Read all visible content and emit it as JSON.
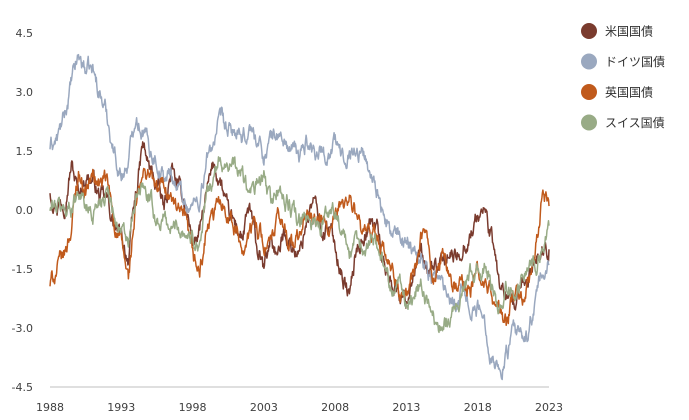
{
  "chart_data": {
    "type": "line",
    "title": "",
    "xlabel": "",
    "ylabel": "",
    "xlim": [
      1988,
      2023
    ],
    "ylim": [
      -4.5,
      4.5
    ],
    "x_ticks": [
      "1988",
      "1993",
      "1998",
      "2003",
      "2008",
      "2013",
      "2018",
      "2023"
    ],
    "y_ticks": [
      "4.5",
      "3.0",
      "1.5",
      "0.0",
      "-1.5",
      "-3.0",
      "-4.5"
    ],
    "grid": false,
    "legend_position": "right",
    "series": [
      {
        "name": "米国国債",
        "color": "#7a3b2e",
        "points": [
          [
            1988,
            0.5
          ],
          [
            1988.5,
            0.2
          ],
          [
            1989,
            0.3
          ],
          [
            1989.5,
            1.2
          ],
          [
            1990,
            0.4
          ],
          [
            1990.5,
            0.9
          ],
          [
            1991,
            0.8
          ],
          [
            1991.5,
            0.3
          ],
          [
            1992,
            0.2
          ],
          [
            1992.5,
            -0.4
          ],
          [
            1993,
            -0.8
          ],
          [
            1993.5,
            -1.2
          ],
          [
            1994,
            0.3
          ],
          [
            1994.5,
            1.6
          ],
          [
            1995,
            1.0
          ],
          [
            1995.5,
            0.6
          ],
          [
            1996,
            0.0
          ],
          [
            1996.5,
            1.0
          ],
          [
            1997,
            0.5
          ],
          [
            1997.5,
            0.2
          ],
          [
            1998,
            -0.8
          ],
          [
            1998.5,
            -0.6
          ],
          [
            1999,
            0.4
          ],
          [
            1999.5,
            1.1
          ],
          [
            2000,
            0.7
          ],
          [
            2000.5,
            -0.2
          ],
          [
            2001,
            -0.4
          ],
          [
            2001.5,
            -0.7
          ],
          [
            2002,
            0.0
          ],
          [
            2002.5,
            -1.0
          ],
          [
            2003,
            -1.6
          ],
          [
            2003.5,
            -0.7
          ],
          [
            2004,
            -1.2
          ],
          [
            2004.5,
            -0.5
          ],
          [
            2005,
            -0.9
          ],
          [
            2005.5,
            -1.2
          ],
          [
            2006,
            -0.2
          ],
          [
            2006.5,
            0.3
          ],
          [
            2007,
            -0.6
          ],
          [
            2007.5,
            -0.4
          ],
          [
            2008,
            -0.9
          ],
          [
            2008.5,
            -1.6
          ],
          [
            2009,
            -2.2
          ],
          [
            2009.5,
            -1.0
          ],
          [
            2010,
            -0.6
          ],
          [
            2010.5,
            -0.3
          ],
          [
            2011,
            -0.5
          ],
          [
            2011.5,
            -1.5
          ],
          [
            2012,
            -1.8
          ],
          [
            2012.5,
            -2.1
          ],
          [
            2013,
            -2.3
          ],
          [
            2013.5,
            -1.5
          ],
          [
            2014,
            -1.2
          ],
          [
            2014.5,
            -1.8
          ],
          [
            2015,
            -1.4
          ],
          [
            2015.5,
            -1.5
          ],
          [
            2016,
            -1.1
          ],
          [
            2016.5,
            -1.3
          ],
          [
            2017,
            -0.8
          ],
          [
            2017.5,
            -0.6
          ],
          [
            2018,
            -0.2
          ],
          [
            2018.5,
            0.0
          ],
          [
            2019,
            -0.8
          ],
          [
            2019.5,
            -1.8
          ],
          [
            2020,
            -2.3
          ],
          [
            2020.5,
            -2.6
          ],
          [
            2021,
            -2.2
          ],
          [
            2021.5,
            -1.8
          ],
          [
            2022,
            -1.3
          ],
          [
            2022.5,
            -1.0
          ],
          [
            2023,
            -1.0
          ]
        ]
      },
      {
        "name": "ドイツ国債",
        "color": "#9aa8bf",
        "points": [
          [
            1988,
            1.6
          ],
          [
            1988.5,
            1.8
          ],
          [
            1989,
            2.3
          ],
          [
            1989.5,
            3.2
          ],
          [
            1990,
            3.9
          ],
          [
            1990.5,
            3.6
          ],
          [
            1991,
            3.5
          ],
          [
            1991.5,
            3.0
          ],
          [
            1992,
            2.4
          ],
          [
            1992.5,
            1.5
          ],
          [
            1993,
            0.9
          ],
          [
            1993.5,
            1.2
          ],
          [
            1994,
            2.5
          ],
          [
            1994.5,
            2.1
          ],
          [
            1995,
            1.6
          ],
          [
            1995.5,
            1.3
          ],
          [
            1996,
            0.8
          ],
          [
            1996.5,
            0.9
          ],
          [
            1997,
            0.6
          ],
          [
            1997.5,
            0.2
          ],
          [
            1998,
            0.1
          ],
          [
            1998.5,
            0.3
          ],
          [
            1999,
            1.2
          ],
          [
            1999.5,
            1.8
          ],
          [
            2000,
            2.2
          ],
          [
            2000.5,
            1.9
          ],
          [
            2001,
            2.0
          ],
          [
            2001.5,
            1.6
          ],
          [
            2002,
            2.1
          ],
          [
            2002.5,
            1.8
          ],
          [
            2003,
            1.4
          ],
          [
            2003.5,
            1.8
          ],
          [
            2004,
            1.9
          ],
          [
            2004.5,
            1.7
          ],
          [
            2005,
            1.5
          ],
          [
            2005.5,
            1.3
          ],
          [
            2006,
            1.8
          ],
          [
            2006.5,
            1.5
          ],
          [
            2007,
            1.6
          ],
          [
            2007.5,
            1.4
          ],
          [
            2008,
            1.7
          ],
          [
            2008.5,
            1.3
          ],
          [
            2009,
            1.6
          ],
          [
            2009.5,
            1.5
          ],
          [
            2010,
            1.4
          ],
          [
            2010.5,
            0.9
          ],
          [
            2011,
            0.6
          ],
          [
            2011.5,
            -0.4
          ],
          [
            2012,
            -0.6
          ],
          [
            2012.5,
            -0.8
          ],
          [
            2013,
            -0.7
          ],
          [
            2013.5,
            -0.9
          ],
          [
            2014,
            -1.1
          ],
          [
            2014.5,
            -1.6
          ],
          [
            2015,
            -1.7
          ],
          [
            2015.5,
            -1.9
          ],
          [
            2016,
            -2.1
          ],
          [
            2016.5,
            -2.2
          ],
          [
            2017,
            -2.0
          ],
          [
            2017.5,
            -2.4
          ],
          [
            2018,
            -2.5
          ],
          [
            2018.5,
            -2.9
          ],
          [
            2019,
            -3.6
          ],
          [
            2019.5,
            -4.1
          ],
          [
            2020,
            -3.7
          ],
          [
            2020.5,
            -3.2
          ],
          [
            2021,
            -3.3
          ],
          [
            2021.5,
            -3.2
          ],
          [
            2022,
            -2.4
          ],
          [
            2022.5,
            -1.7
          ],
          [
            2023,
            -1.4
          ]
        ]
      },
      {
        "name": "英国国債",
        "color": "#c05a1c",
        "points": [
          [
            1988,
            -1.9
          ],
          [
            1988.5,
            -1.5
          ],
          [
            1989,
            -1.2
          ],
          [
            1989.5,
            -0.4
          ],
          [
            1990,
            1.0
          ],
          [
            1990.5,
            0.5
          ],
          [
            1991,
            0.9
          ],
          [
            1991.5,
            0.6
          ],
          [
            1992,
            0.7
          ],
          [
            1992.5,
            -0.3
          ],
          [
            1993,
            -0.9
          ],
          [
            1993.5,
            -1.8
          ],
          [
            1994,
            0.0
          ],
          [
            1994.5,
            0.8
          ],
          [
            1995,
            1.0
          ],
          [
            1995.5,
            0.4
          ],
          [
            1996,
            0.7
          ],
          [
            1996.5,
            0.3
          ],
          [
            1997,
            -0.1
          ],
          [
            1997.5,
            -0.4
          ],
          [
            1998,
            -1.3
          ],
          [
            1998.5,
            -1.6
          ],
          [
            1999,
            -0.5
          ],
          [
            1999.5,
            -0.2
          ],
          [
            2000,
            0.3
          ],
          [
            2000.5,
            0.0
          ],
          [
            2001,
            -0.5
          ],
          [
            2001.5,
            -0.9
          ],
          [
            2002,
            -0.6
          ],
          [
            2002.5,
            -0.3
          ],
          [
            2003,
            -0.8
          ],
          [
            2003.5,
            -0.9
          ],
          [
            2004,
            -0.3
          ],
          [
            2004.5,
            -0.5
          ],
          [
            2005,
            -0.9
          ],
          [
            2005.5,
            -0.7
          ],
          [
            2006,
            0.0
          ],
          [
            2006.5,
            -0.4
          ],
          [
            2007,
            -0.3
          ],
          [
            2007.5,
            -0.6
          ],
          [
            2008,
            -0.4
          ],
          [
            2008.5,
            0.2
          ],
          [
            2009,
            0.3
          ],
          [
            2009.5,
            -0.2
          ],
          [
            2010,
            -0.8
          ],
          [
            2010.5,
            -0.7
          ],
          [
            2011,
            -0.6
          ],
          [
            2011.5,
            -1.2
          ],
          [
            2012,
            -1.7
          ],
          [
            2012.5,
            -2.1
          ],
          [
            2013,
            -2.2
          ],
          [
            2013.5,
            -1.6
          ],
          [
            2014,
            -0.8
          ],
          [
            2014.5,
            -0.9
          ],
          [
            2015,
            -1.7
          ],
          [
            2015.5,
            -1.2
          ],
          [
            2016,
            -1.5
          ],
          [
            2016.5,
            -2.1
          ],
          [
            2017,
            -1.8
          ],
          [
            2017.5,
            -2.0
          ],
          [
            2018,
            -1.6
          ],
          [
            2018.5,
            -1.9
          ],
          [
            2019,
            -2.2
          ],
          [
            2019.5,
            -2.6
          ],
          [
            2020,
            -2.9
          ],
          [
            2020.5,
            -2.2
          ],
          [
            2021,
            -2.3
          ],
          [
            2021.5,
            -2.0
          ],
          [
            2022,
            -1.4
          ],
          [
            2022.5,
            0.3
          ],
          [
            2023,
            0.1
          ]
        ]
      },
      {
        "name": "スイス国債",
        "color": "#98ab86",
        "points": [
          [
            1988,
            0.0
          ],
          [
            1988.5,
            0.1
          ],
          [
            1989,
            0.0
          ],
          [
            1989.5,
            0.1
          ],
          [
            1990,
            0.6
          ],
          [
            1990.5,
            0.1
          ],
          [
            1991,
            -0.1
          ],
          [
            1991.5,
            0.3
          ],
          [
            1992,
            0.6
          ],
          [
            1992.5,
            0.0
          ],
          [
            1993,
            -0.6
          ],
          [
            1993.5,
            -0.9
          ],
          [
            1994,
            0.1
          ],
          [
            1994.5,
            0.6
          ],
          [
            1995,
            0.2
          ],
          [
            1995.5,
            -0.3
          ],
          [
            1996,
            -0.2
          ],
          [
            1996.5,
            -0.5
          ],
          [
            1997,
            -0.4
          ],
          [
            1997.5,
            -0.5
          ],
          [
            1998,
            -0.7
          ],
          [
            1998.5,
            -0.8
          ],
          [
            1999,
            0.3
          ],
          [
            1999.5,
            0.9
          ],
          [
            2000,
            1.2
          ],
          [
            2000.5,
            1.3
          ],
          [
            2001,
            1.0
          ],
          [
            2001.5,
            0.9
          ],
          [
            2002,
            0.3
          ],
          [
            2002.5,
            0.6
          ],
          [
            2003,
            0.8
          ],
          [
            2003.5,
            0.1
          ],
          [
            2004,
            0.6
          ],
          [
            2004.5,
            0.2
          ],
          [
            2005,
            0.0
          ],
          [
            2005.5,
            -0.4
          ],
          [
            2006,
            -0.3
          ],
          [
            2006.5,
            -0.2
          ],
          [
            2007,
            -0.4
          ],
          [
            2007.5,
            -0.1
          ],
          [
            2008,
            0.1
          ],
          [
            2008.5,
            -0.5
          ],
          [
            2009,
            -1.2
          ],
          [
            2009.5,
            -0.9
          ],
          [
            2010,
            -1.1
          ],
          [
            2010.5,
            -0.6
          ],
          [
            2011,
            -0.9
          ],
          [
            2011.5,
            -1.4
          ],
          [
            2012,
            -2.0
          ],
          [
            2012.5,
            -1.8
          ],
          [
            2013,
            -2.4
          ],
          [
            2013.5,
            -2.1
          ],
          [
            2014,
            -1.9
          ],
          [
            2014.5,
            -2.4
          ],
          [
            2015,
            -2.8
          ],
          [
            2015.5,
            -2.8
          ],
          [
            2016,
            -2.7
          ],
          [
            2016.5,
            -2.4
          ],
          [
            2017,
            -1.9
          ],
          [
            2017.5,
            -1.7
          ],
          [
            2018,
            -1.6
          ],
          [
            2018.5,
            -1.5
          ],
          [
            2019,
            -2.0
          ],
          [
            2019.5,
            -2.4
          ],
          [
            2020,
            -2.1
          ],
          [
            2020.5,
            -1.8
          ],
          [
            2021,
            -1.8
          ],
          [
            2021.5,
            -1.4
          ],
          [
            2022,
            -1.4
          ],
          [
            2022.5,
            -0.9
          ],
          [
            2023,
            -0.4
          ]
        ]
      }
    ]
  }
}
